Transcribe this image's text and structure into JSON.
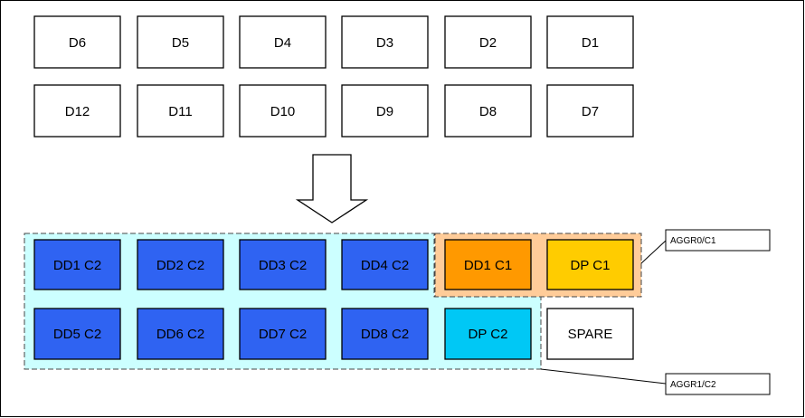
{
  "top_disks_row1": [
    "D6",
    "D5",
    "D4",
    "D3",
    "D2",
    "D1"
  ],
  "top_disks_row2": [
    "D12",
    "D11",
    "D10",
    "D9",
    "D8",
    "D7"
  ],
  "aggr1": {
    "row1": [
      "DD1 C2",
      "DD2 C2",
      "DD3 C2",
      "DD4 C2"
    ],
    "row2": [
      "DD5 C2",
      "DD6 C2",
      "DD7 C2",
      "DD8 C2",
      "DP C2"
    ],
    "callout": "AGGR1/C2"
  },
  "aggr0": {
    "disks": [
      "DD1 C1",
      "DP C1"
    ],
    "callout": "AGGR0/C1"
  },
  "spare_label": "SPARE",
  "colors": {
    "data_disk_c2": "#2f63f2",
    "parity_disk_c2": "#00c8f5",
    "data_disk_c1": "#ff9900",
    "parity_disk_c1": "#ffcc00",
    "aggr1_bg": "#ccffff",
    "aggr0_bg": "#ffcc99",
    "plain_box": "#ffffff",
    "stroke": "#000000"
  }
}
